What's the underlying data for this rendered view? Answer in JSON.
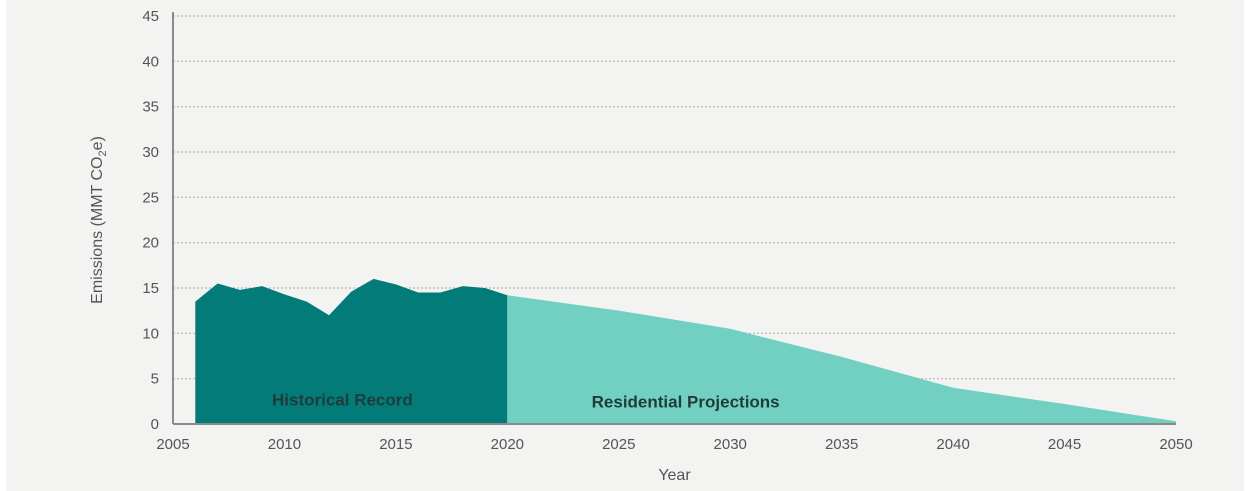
{
  "chart_data": {
    "type": "area",
    "xlabel": "Year",
    "ylabel": "Emissions (MMT CO",
    "ylabel_subscript": "2",
    "ylabel_suffix": "e)",
    "xlim": [
      2005,
      2050
    ],
    "ylim": [
      0,
      45
    ],
    "x_ticks": [
      "2005",
      "2010",
      "2015",
      "2020",
      "2025",
      "2030",
      "2035",
      "2040",
      "2045",
      "2050"
    ],
    "y_ticks": [
      "0",
      "5",
      "10",
      "15",
      "20",
      "25",
      "30",
      "35",
      "40",
      "45"
    ],
    "grid": true,
    "series": [
      {
        "name": "Historical Record",
        "color": "#037b78",
        "x": [
          2006,
          2007,
          2008,
          2009,
          2010,
          2011,
          2012,
          2013,
          2014,
          2015,
          2016,
          2017,
          2018,
          2019,
          2020
        ],
        "y": [
          13.5,
          15.5,
          14.8,
          15.2,
          14.3,
          13.5,
          12.0,
          14.6,
          16.0,
          15.4,
          14.5,
          14.5,
          15.2,
          15.0,
          14.2
        ]
      },
      {
        "name": "Residential Projections",
        "color": "#72d0c3",
        "x": [
          2020,
          2025,
          2030,
          2035,
          2040,
          2045,
          2050
        ],
        "y": [
          14.2,
          12.5,
          10.5,
          7.4,
          4.0,
          2.2,
          0.3
        ]
      }
    ]
  }
}
